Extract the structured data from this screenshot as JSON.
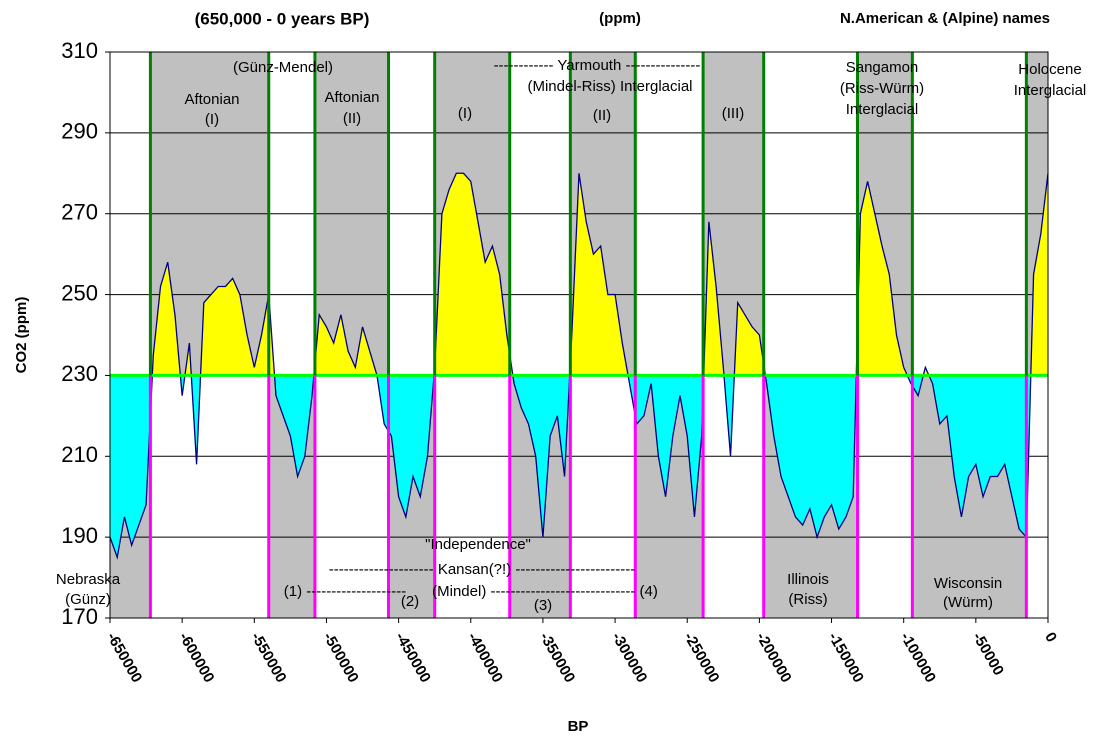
{
  "chart_data": {
    "type": "line",
    "title": "(650,000 - 0 years BP)",
    "x_label": "BP",
    "y_label": "CO2 (ppm)",
    "x": [
      -650000,
      -645000,
      -640000,
      -635000,
      -630000,
      -625000,
      -620000,
      -615000,
      -610000,
      -605000,
      -600000,
      -595000,
      -590000,
      -585000,
      -580000,
      -575000,
      -570000,
      -565000,
      -560000,
      -555000,
      -550000,
      -545000,
      -540000,
      -535000,
      -530000,
      -525000,
      -520000,
      -515000,
      -510000,
      -505000,
      -500000,
      -495000,
      -490000,
      -485000,
      -480000,
      -475000,
      -470000,
      -465000,
      -460000,
      -455000,
      -450000,
      -445000,
      -440000,
      -435000,
      -430000,
      -425000,
      -420000,
      -415000,
      -410000,
      -405000,
      -400000,
      -395000,
      -390000,
      -385000,
      -380000,
      -375000,
      -370000,
      -365000,
      -360000,
      -355000,
      -350000,
      -345000,
      -340000,
      -335000,
      -330000,
      -325000,
      -320000,
      -315000,
      -310000,
      -305000,
      -300000,
      -295000,
      -290000,
      -285000,
      -280000,
      -275000,
      -270000,
      -265000,
      -260000,
      -255000,
      -250000,
      -245000,
      -240000,
      -235000,
      -230000,
      -225000,
      -220000,
      -215000,
      -210000,
      -205000,
      -200000,
      -195000,
      -190000,
      -185000,
      -180000,
      -175000,
      -170000,
      -165000,
      -160000,
      -155000,
      -150000,
      -145000,
      -140000,
      -135000,
      -130000,
      -125000,
      -120000,
      -115000,
      -110000,
      -105000,
      -100000,
      -95000,
      -90000,
      -85000,
      -80000,
      -75000,
      -70000,
      -65000,
      -60000,
      -55000,
      -50000,
      -45000,
      -40000,
      -35000,
      -30000,
      -25000,
      -20000,
      -15000,
      -10000,
      -5000,
      0
    ],
    "series": [
      {
        "color": "#000080",
        "values": [
          190,
          185,
          195,
          188,
          193,
          198,
          235,
          252,
          258,
          245,
          225,
          238,
          208,
          248,
          250,
          252,
          252,
          254,
          250,
          240,
          232,
          240,
          250,
          225,
          220,
          215,
          205,
          210,
          225,
          245,
          242,
          238,
          245,
          236,
          232,
          242,
          236,
          230,
          218,
          215,
          200,
          195,
          205,
          200,
          210,
          232,
          270,
          276,
          280,
          280,
          278,
          268,
          258,
          262,
          255,
          240,
          228,
          222,
          218,
          210,
          190,
          215,
          220,
          205,
          240,
          280,
          268,
          260,
          262,
          250,
          250,
          238,
          228,
          218,
          220,
          228,
          210,
          200,
          215,
          225,
          215,
          195,
          215,
          268,
          252,
          232,
          210,
          248,
          245,
          242,
          240,
          228,
          215,
          205,
          200,
          195,
          193,
          197,
          190,
          195,
          198,
          192,
          195,
          200,
          270,
          278,
          270,
          262,
          255,
          240,
          232,
          228,
          225,
          232,
          228,
          218,
          220,
          205,
          195,
          205,
          208,
          200,
          205,
          205,
          208,
          200,
          192,
          190,
          255,
          265,
          280
        ]
      }
    ],
    "threshold": 230,
    "above_color": "#ffff00",
    "below_color": "#00ffff",
    "threshold_color": "#00ff00",
    "shade_color": "#c0c0c0",
    "vlines": [
      -622000,
      -540000,
      -508000,
      -457000,
      -425000,
      -373000,
      -331000,
      -286000,
      -239000,
      -197000,
      -132000,
      -94000,
      -15000
    ],
    "vline_upper_color": "#008000",
    "vline_lower_color": "#ff00ff",
    "interglacials": [
      [
        -622000,
        -540000
      ],
      [
        -508000,
        -457000
      ],
      [
        -425000,
        -373000
      ],
      [
        -331000,
        -286000
      ],
      [
        -239000,
        -197000
      ],
      [
        -132000,
        -94000
      ],
      [
        -15000,
        0
      ]
    ],
    "xlim": [
      -650000,
      0
    ],
    "xticks": [
      -650000,
      -600000,
      -550000,
      -500000,
      -450000,
      -400000,
      -350000,
      -300000,
      -250000,
      -200000,
      -150000,
      -100000,
      -50000,
      0
    ],
    "ylim": [
      170,
      310
    ],
    "yticks": [
      170,
      190,
      210,
      230,
      250,
      270,
      290,
      310
    ],
    "grid": true,
    "annotations": [
      "(ppm)",
      "N.American & (Alpine) names",
      "(Günz-Mendel)",
      "Aftonian",
      "(I)",
      "Aftonian",
      "(II)",
      "------------ Yarmouth ---------------",
      "(Mindel-Riss) Interglacial",
      "(I)",
      "(II)",
      "(III)",
      "Sangamon",
      "(Riss-Würm)",
      "Interglacial",
      "Holocene",
      "Interglacial",
      "\"Independence\"",
      "--------------------- Kansan(?!) ------------------------",
      "(1) --------------------",
      "(2)",
      "(Mindel) ----------------------------- (4)",
      "(3)",
      "Nebraska",
      "(Günz)",
      "Illinois",
      "(Riss)",
      "Wisconsin",
      "(Würm)"
    ]
  }
}
